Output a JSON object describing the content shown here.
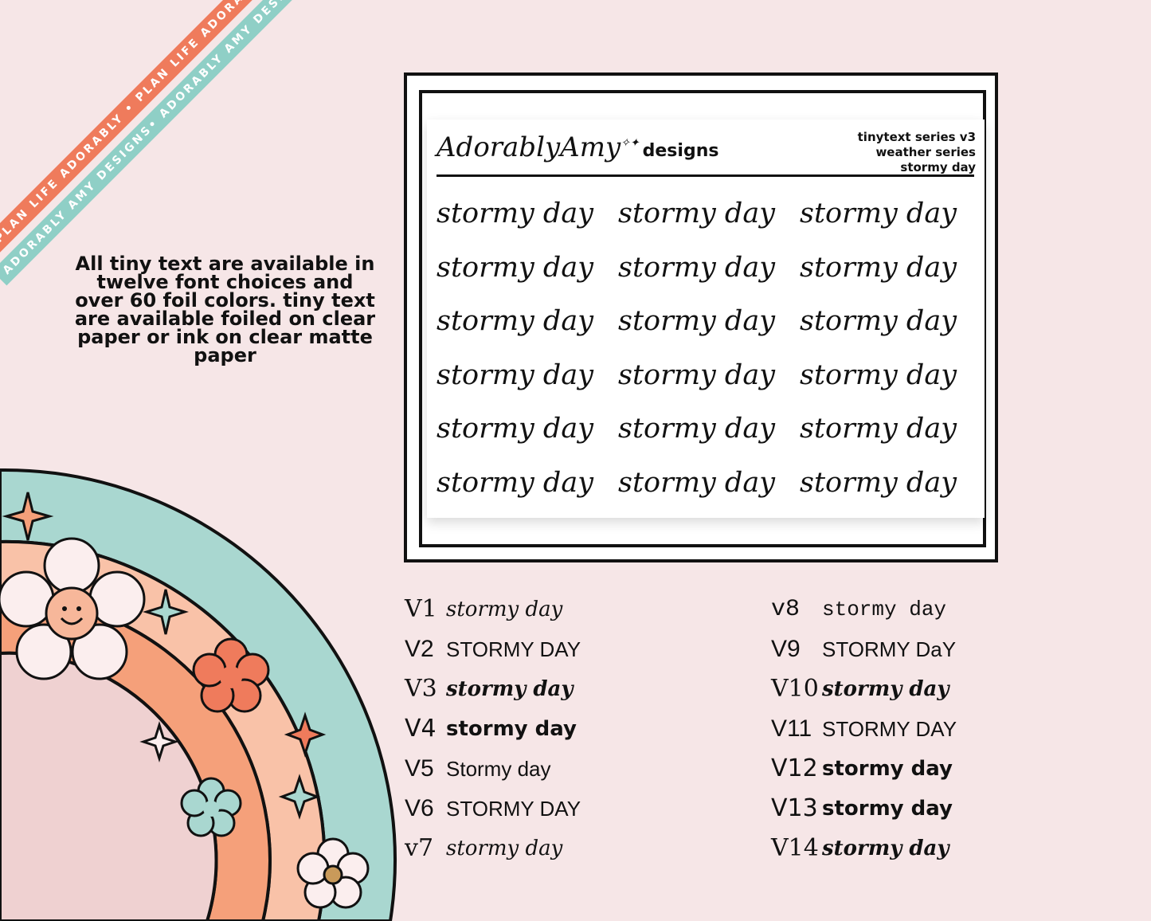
{
  "ribbons": {
    "orange_text": "PLAN LIFE ADORABLY • PLAN LIFE ADORABLY • PLAN LIFE ADORABLY",
    "teal_text": "ADORABLY AMY DESIGNS• ADORABLY AMY DESIGNS• ADORABLY AMY DESIGNS"
  },
  "info_text": "All tiny text are available in twelve font choices and over 60 foil colors.  tiny text are available foiled on clear paper or ink on clear matte paper",
  "sheet": {
    "brand_script": "AdorablyAmy",
    "brand_designs": "designs",
    "series_lines": [
      "tinytext series v3",
      "weather series",
      "stormy day"
    ],
    "sticker_text": "stormy day",
    "rows": 6,
    "cols": 3
  },
  "variants_left": [
    {
      "code": "V1",
      "sample": "stormy day"
    },
    {
      "code": "V2",
      "sample": "STORMY DAY"
    },
    {
      "code": "V3",
      "sample": "stormy day"
    },
    {
      "code": "V4",
      "sample": "stormy day"
    },
    {
      "code": "V5",
      "sample": "Stormy day"
    },
    {
      "code": "V6",
      "sample": "STORMY DAY"
    },
    {
      "code": "v7",
      "sample": "stormy day"
    }
  ],
  "variants_right": [
    {
      "code": "v8",
      "sample": "stormy day"
    },
    {
      "code": "V9",
      "sample": "STORMY DaY"
    },
    {
      "code": "V10",
      "sample": "stormy day"
    },
    {
      "code": "V11",
      "sample": "STORMY DAY"
    },
    {
      "code": "V12",
      "sample": "stormy day"
    },
    {
      "code": "V13",
      "sample": "stormy day"
    },
    {
      "code": "V14",
      "sample": "stormy day"
    }
  ],
  "colors": {
    "background": "#f6e6e7",
    "orange": "#ef7b5c",
    "teal": "#8fcfc6",
    "peach": "#f9c2a8",
    "pink": "#efd1d1"
  }
}
